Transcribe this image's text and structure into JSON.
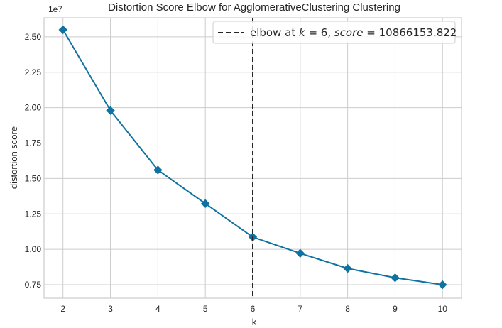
{
  "chart_data": {
    "type": "line",
    "title": "Distortion Score Elbow for AgglomerativeClustering Clustering",
    "xlabel": "k",
    "ylabel": "distortion score",
    "y_offset_label": "1e7",
    "x": [
      2,
      3,
      4,
      5,
      6,
      7,
      8,
      9,
      10
    ],
    "series": [
      {
        "values": [
          25500000,
          19800000,
          15600000,
          13230000,
          10866153.822,
          9720000,
          8650000,
          7990000,
          7500000
        ],
        "color": "#0f72a1",
        "marker": "diamond"
      }
    ],
    "xlim": [
      1.6,
      10.4
    ],
    "ylim": [
      6550000,
      26350000
    ],
    "x_ticks": [
      2,
      3,
      4,
      5,
      6,
      7,
      8,
      9,
      10
    ],
    "y_ticks": [
      7500000,
      10000000,
      12500000,
      15000000,
      17500000,
      20000000,
      22500000,
      25000000
    ],
    "y_tick_labels": [
      "0.75",
      "1.00",
      "1.25",
      "1.50",
      "1.75",
      "2.00",
      "2.25",
      "2.50"
    ],
    "elbow": {
      "k": 6,
      "score": 10866153.822,
      "color": "#262626",
      "style": "dashed"
    },
    "legend": {
      "placement": "top-right",
      "entry": {
        "prefix": "elbow at ",
        "k_symbol": "k",
        "k_part": " = 6, ",
        "score_symbol": "score",
        "score_part": " = 10866153.822"
      }
    },
    "grid": true,
    "colors": {
      "line": "#0f72a1",
      "grid": "#cccccc",
      "frame": "#cccccc",
      "elbow": "#262626"
    }
  }
}
